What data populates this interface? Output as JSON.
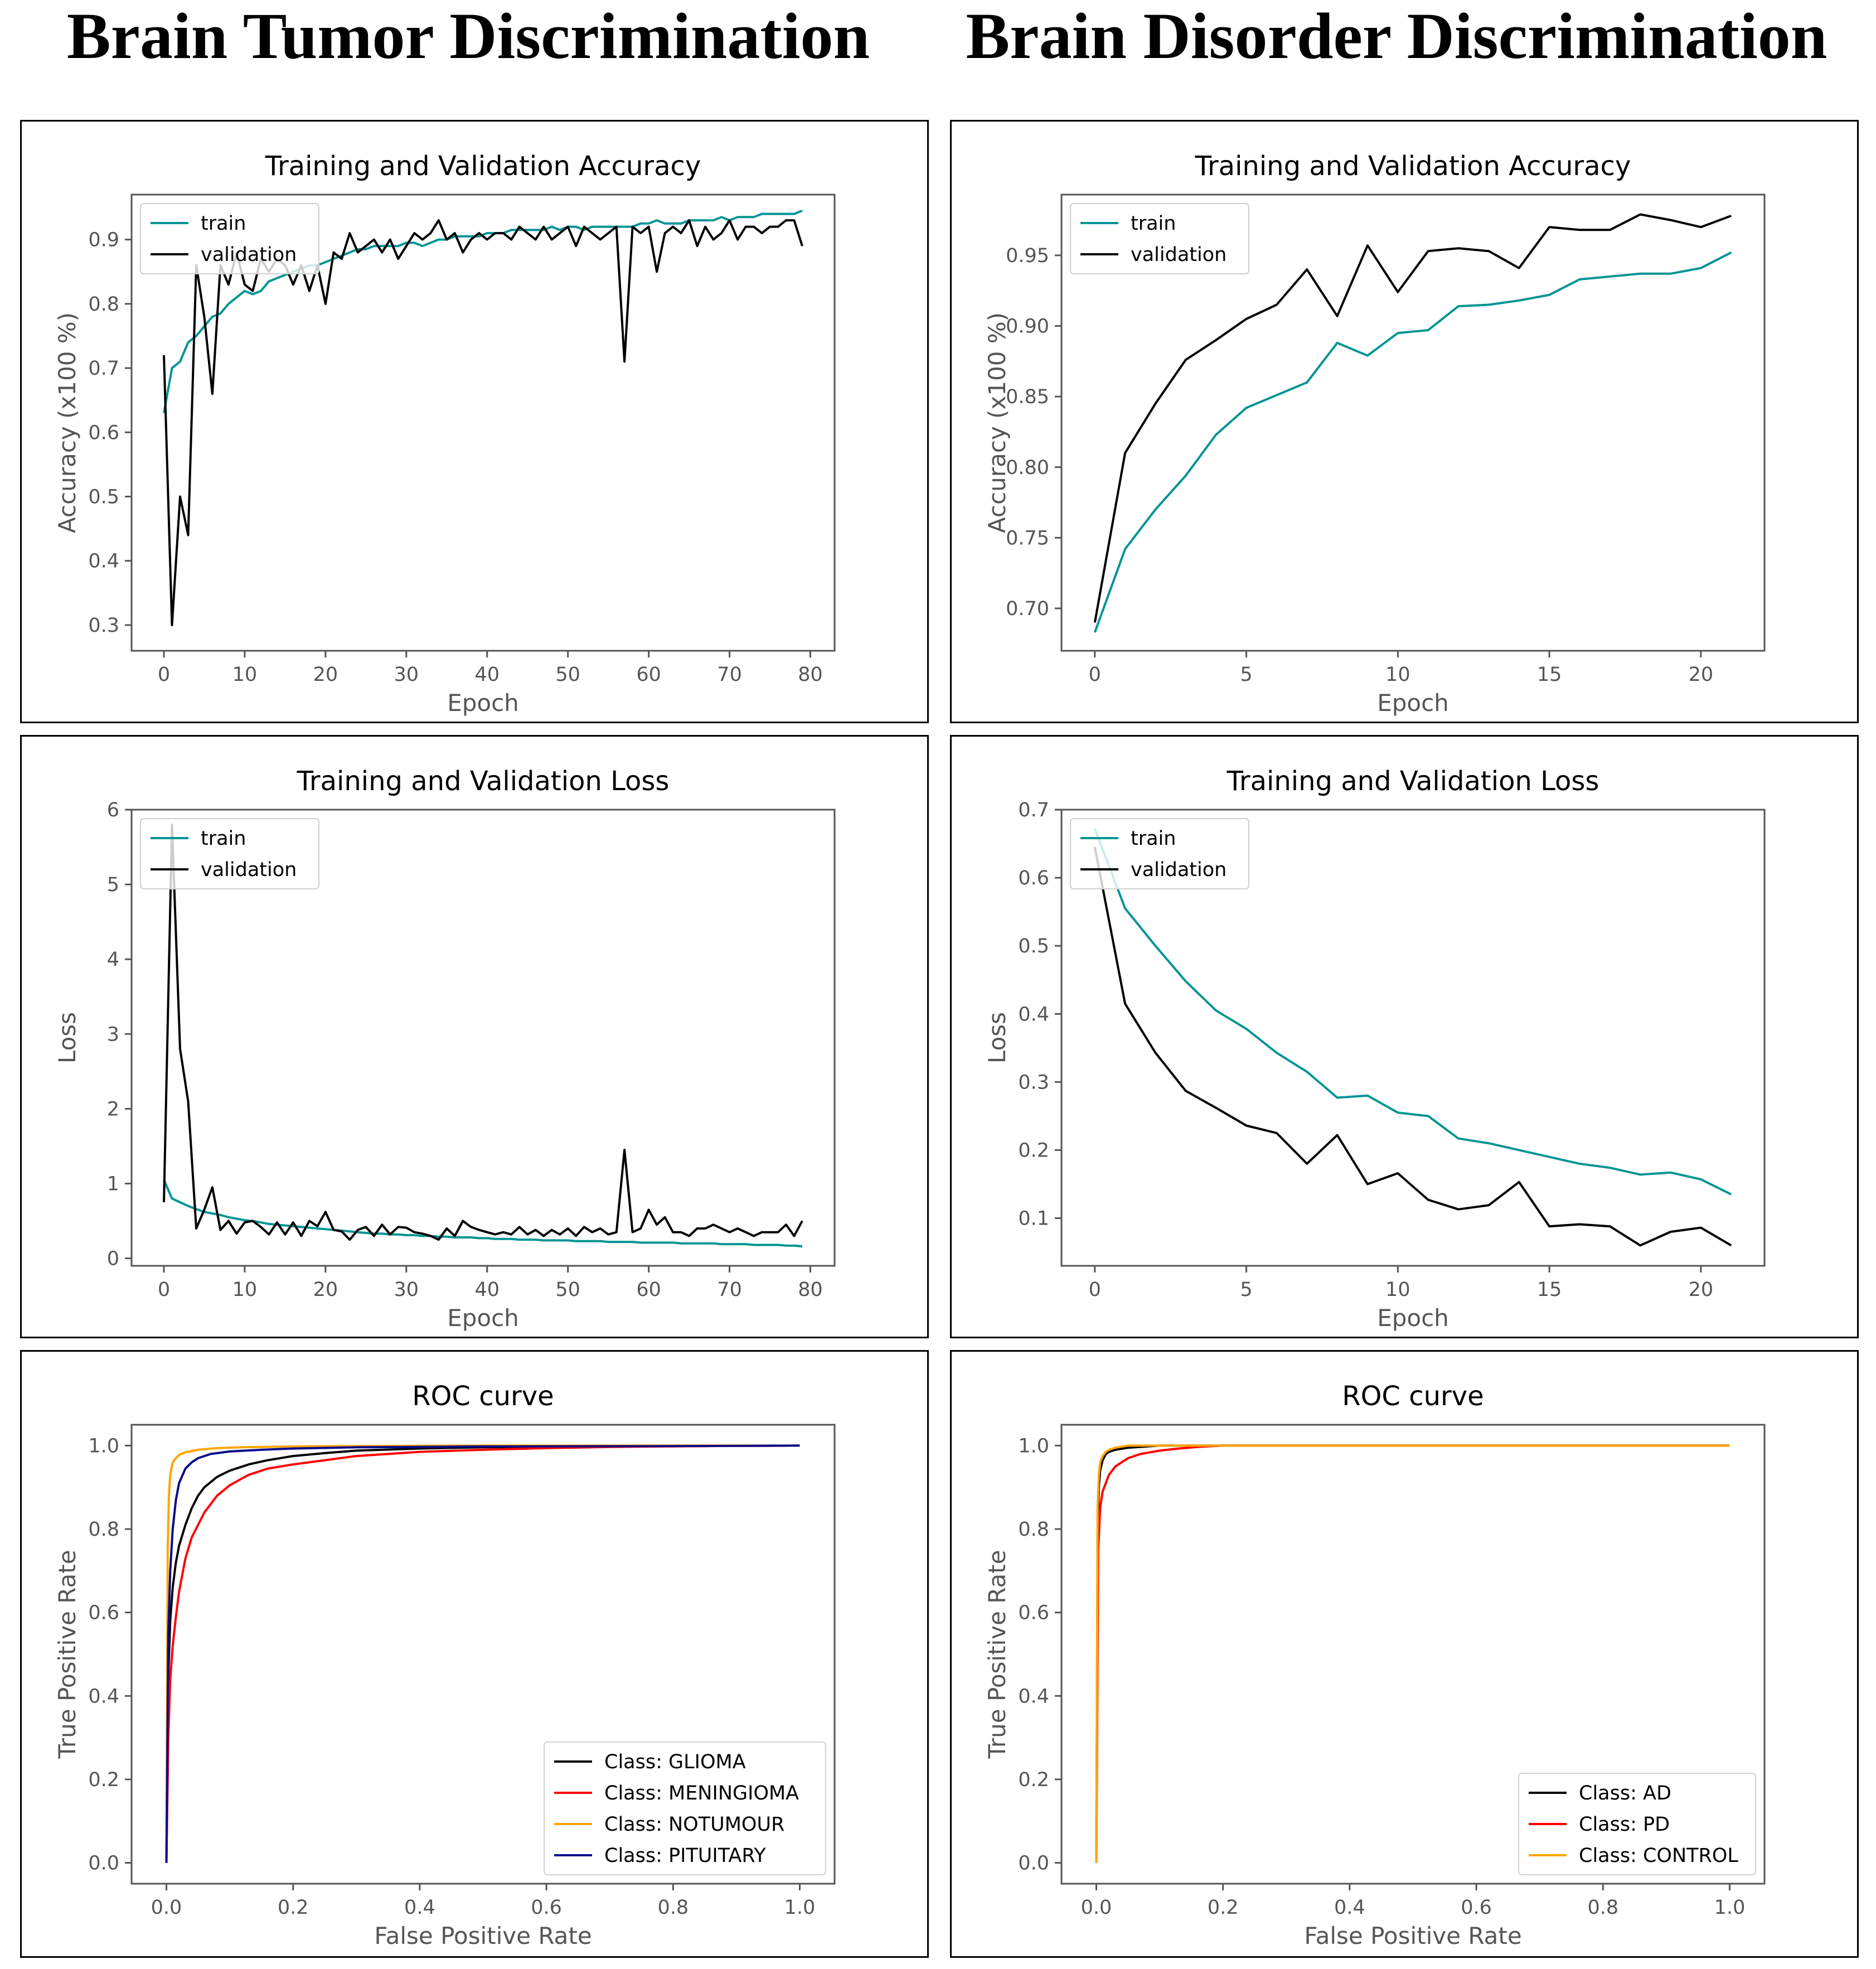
{
  "headings": {
    "left": "Brain Tumor Discrimination",
    "right": "Brain Disorder Discrimination"
  },
  "chart_data": [
    {
      "id": "tumor_acc",
      "type": "line",
      "title": "Training and Validation Accuracy",
      "xlabel": "Epoch",
      "ylabel": "Accuracy (x100 %)",
      "xlim": [
        -4,
        83
      ],
      "ylim": [
        0.26,
        0.97
      ],
      "xticks": [
        0,
        10,
        20,
        30,
        40,
        50,
        60,
        70,
        80
      ],
      "yticks": [
        0.3,
        0.4,
        0.5,
        0.6,
        0.7,
        0.8,
        0.9
      ],
      "xtick_labels": [
        "0",
        "10",
        "20",
        "30",
        "40",
        "50",
        "60",
        "70",
        "80"
      ],
      "ytick_labels": [
        "0.3",
        "0.4",
        "0.5",
        "0.6",
        "0.7",
        "0.8",
        "0.9"
      ],
      "legend": "top-left",
      "series": [
        {
          "name": "train",
          "color": "#009494",
          "values": [
            0.63,
            0.7,
            0.71,
            0.74,
            0.75,
            0.765,
            0.78,
            0.785,
            0.8,
            0.81,
            0.82,
            0.815,
            0.82,
            0.835,
            0.84,
            0.845,
            0.85,
            0.855,
            0.86,
            0.86,
            0.865,
            0.87,
            0.875,
            0.88,
            0.885,
            0.885,
            0.89,
            0.89,
            0.89,
            0.89,
            0.895,
            0.895,
            0.89,
            0.895,
            0.9,
            0.9,
            0.905,
            0.905,
            0.905,
            0.905,
            0.91,
            0.91,
            0.91,
            0.915,
            0.915,
            0.915,
            0.915,
            0.915,
            0.92,
            0.915,
            0.92,
            0.92,
            0.915,
            0.92,
            0.92,
            0.92,
            0.92,
            0.92,
            0.92,
            0.925,
            0.925,
            0.93,
            0.925,
            0.925,
            0.925,
            0.93,
            0.93,
            0.93,
            0.93,
            0.935,
            0.93,
            0.935,
            0.935,
            0.935,
            0.94,
            0.94,
            0.94,
            0.94,
            0.94,
            0.945
          ]
        },
        {
          "name": "validation",
          "color": "#000000",
          "values": [
            0.72,
            0.3,
            0.5,
            0.44,
            0.86,
            0.78,
            0.66,
            0.86,
            0.83,
            0.88,
            0.83,
            0.82,
            0.87,
            0.85,
            0.87,
            0.86,
            0.83,
            0.86,
            0.82,
            0.86,
            0.8,
            0.88,
            0.87,
            0.91,
            0.88,
            0.89,
            0.9,
            0.88,
            0.9,
            0.87,
            0.89,
            0.91,
            0.9,
            0.91,
            0.93,
            0.9,
            0.91,
            0.88,
            0.9,
            0.91,
            0.9,
            0.91,
            0.91,
            0.9,
            0.92,
            0.91,
            0.9,
            0.92,
            0.9,
            0.91,
            0.92,
            0.89,
            0.92,
            0.91,
            0.9,
            0.91,
            0.92,
            0.71,
            0.92,
            0.91,
            0.92,
            0.85,
            0.91,
            0.92,
            0.91,
            0.93,
            0.89,
            0.92,
            0.9,
            0.91,
            0.93,
            0.9,
            0.92,
            0.92,
            0.91,
            0.92,
            0.92,
            0.93,
            0.93,
            0.89
          ]
        }
      ]
    },
    {
      "id": "disorder_acc",
      "type": "line",
      "title": "Training and Validation Accuracy",
      "xlabel": "Epoch",
      "ylabel": "Accuracy (x100 %)",
      "xlim": [
        -1.1,
        22.1
      ],
      "ylim": [
        0.67,
        0.993
      ],
      "xticks": [
        0,
        5,
        10,
        15,
        20
      ],
      "yticks": [
        0.7,
        0.75,
        0.8,
        0.85,
        0.9,
        0.95
      ],
      "xtick_labels": [
        "0",
        "5",
        "10",
        "15",
        "20"
      ],
      "ytick_labels": [
        "0.70",
        "0.75",
        "0.80",
        "0.85",
        "0.90",
        "0.95"
      ],
      "legend": "top-left",
      "series": [
        {
          "name": "train",
          "color": "#009494",
          "values": [
            0.683,
            0.742,
            0.77,
            0.794,
            0.823,
            0.842,
            0.851,
            0.86,
            0.888,
            0.879,
            0.895,
            0.897,
            0.914,
            0.915,
            0.918,
            0.922,
            0.933,
            0.935,
            0.937,
            0.937,
            0.941,
            0.952
          ]
        },
        {
          "name": "validation",
          "color": "#000000",
          "values": [
            0.69,
            0.81,
            0.845,
            0.876,
            0.89,
            0.905,
            0.915,
            0.94,
            0.907,
            0.957,
            0.924,
            0.953,
            0.955,
            0.953,
            0.941,
            0.97,
            0.968,
            0.968,
            0.979,
            0.975,
            0.97,
            0.978
          ]
        }
      ]
    },
    {
      "id": "tumor_loss",
      "type": "line",
      "title": "Training and Validation Loss",
      "xlabel": "Epoch",
      "ylabel": "Loss",
      "xlim": [
        -4,
        83
      ],
      "ylim": [
        -0.1,
        6.0
      ],
      "xticks": [
        0,
        10,
        20,
        30,
        40,
        50,
        60,
        70,
        80
      ],
      "yticks": [
        0,
        1,
        2,
        3,
        4,
        5,
        6
      ],
      "xtick_labels": [
        "0",
        "10",
        "20",
        "30",
        "40",
        "50",
        "60",
        "70",
        "80"
      ],
      "ytick_labels": [
        "0",
        "1",
        "2",
        "3",
        "4",
        "5",
        "6"
      ],
      "legend": "top-left",
      "series": [
        {
          "name": "train",
          "color": "#009494",
          "values": [
            1.05,
            0.8,
            0.75,
            0.7,
            0.66,
            0.62,
            0.6,
            0.58,
            0.55,
            0.53,
            0.51,
            0.5,
            0.48,
            0.46,
            0.45,
            0.44,
            0.43,
            0.42,
            0.41,
            0.4,
            0.39,
            0.38,
            0.37,
            0.36,
            0.35,
            0.34,
            0.33,
            0.33,
            0.32,
            0.32,
            0.31,
            0.31,
            0.3,
            0.3,
            0.29,
            0.29,
            0.28,
            0.28,
            0.28,
            0.27,
            0.27,
            0.26,
            0.26,
            0.26,
            0.25,
            0.25,
            0.25,
            0.24,
            0.24,
            0.24,
            0.24,
            0.23,
            0.23,
            0.23,
            0.23,
            0.22,
            0.22,
            0.22,
            0.22,
            0.21,
            0.21,
            0.21,
            0.21,
            0.21,
            0.2,
            0.2,
            0.2,
            0.2,
            0.2,
            0.19,
            0.19,
            0.19,
            0.19,
            0.18,
            0.18,
            0.18,
            0.18,
            0.17,
            0.17,
            0.16
          ]
        },
        {
          "name": "validation",
          "color": "#000000",
          "values": [
            0.75,
            5.8,
            2.8,
            2.1,
            0.4,
            0.65,
            0.95,
            0.38,
            0.5,
            0.33,
            0.48,
            0.5,
            0.42,
            0.32,
            0.48,
            0.32,
            0.48,
            0.3,
            0.5,
            0.43,
            0.62,
            0.38,
            0.36,
            0.25,
            0.38,
            0.42,
            0.3,
            0.45,
            0.32,
            0.42,
            0.41,
            0.35,
            0.33,
            0.3,
            0.25,
            0.4,
            0.3,
            0.5,
            0.42,
            0.38,
            0.35,
            0.32,
            0.35,
            0.32,
            0.42,
            0.32,
            0.38,
            0.3,
            0.38,
            0.32,
            0.4,
            0.3,
            0.42,
            0.35,
            0.4,
            0.32,
            0.35,
            1.45,
            0.35,
            0.4,
            0.65,
            0.45,
            0.55,
            0.35,
            0.35,
            0.3,
            0.4,
            0.4,
            0.45,
            0.4,
            0.35,
            0.4,
            0.35,
            0.3,
            0.35,
            0.35,
            0.35,
            0.45,
            0.3,
            0.5
          ]
        }
      ]
    },
    {
      "id": "disorder_loss",
      "type": "line",
      "title": "Training and Validation Loss",
      "xlabel": "Epoch",
      "ylabel": "Loss",
      "xlim": [
        -1.1,
        22.1
      ],
      "ylim": [
        0.03,
        0.7
      ],
      "xticks": [
        0,
        5,
        10,
        15,
        20
      ],
      "yticks": [
        0.1,
        0.2,
        0.3,
        0.4,
        0.5,
        0.6,
        0.7
      ],
      "xtick_labels": [
        "0",
        "5",
        "10",
        "15",
        "20"
      ],
      "ytick_labels": [
        "0.1",
        "0.2",
        "0.3",
        "0.4",
        "0.5",
        "0.6",
        "0.7"
      ],
      "legend": "top-left",
      "series": [
        {
          "name": "train",
          "color": "#009494",
          "values": [
            0.672,
            0.555,
            0.5,
            0.448,
            0.405,
            0.378,
            0.343,
            0.315,
            0.277,
            0.28,
            0.255,
            0.25,
            0.217,
            0.21,
            0.2,
            0.19,
            0.18,
            0.174,
            0.164,
            0.167,
            0.157,
            0.135
          ]
        },
        {
          "name": "validation",
          "color": "#000000",
          "values": [
            0.645,
            0.415,
            0.343,
            0.287,
            0.262,
            0.236,
            0.225,
            0.18,
            0.222,
            0.15,
            0.166,
            0.127,
            0.113,
            0.119,
            0.153,
            0.088,
            0.091,
            0.088,
            0.06,
            0.08,
            0.086,
            0.06
          ]
        }
      ]
    },
    {
      "id": "tumor_roc",
      "type": "line",
      "title": "ROC curve",
      "xlabel": "False Positive Rate",
      "ylabel": "True Positive Rate",
      "xlim": [
        -0.055,
        1.055
      ],
      "ylim": [
        -0.05,
        1.05
      ],
      "xticks": [
        0,
        0.2,
        0.4,
        0.6,
        0.8,
        1.0
      ],
      "yticks": [
        0,
        0.2,
        0.4,
        0.6,
        0.8,
        1.0
      ],
      "xtick_labels": [
        "0.0",
        "0.2",
        "0.4",
        "0.6",
        "0.8",
        "1.0"
      ],
      "ytick_labels": [
        "0.0",
        "0.2",
        "0.4",
        "0.6",
        "0.8",
        "1.0"
      ],
      "legend": "bottom-right",
      "series": [
        {
          "name": "Class: GLIOMA",
          "color": "#000000",
          "x": [
            0,
            0.003,
            0.006,
            0.01,
            0.015,
            0.02,
            0.03,
            0.04,
            0.05,
            0.06,
            0.08,
            0.1,
            0.13,
            0.16,
            0.2,
            0.25,
            0.3,
            0.4,
            0.5,
            0.7,
            1.0
          ],
          "y": [
            0,
            0.45,
            0.58,
            0.66,
            0.72,
            0.76,
            0.81,
            0.85,
            0.88,
            0.9,
            0.925,
            0.94,
            0.955,
            0.965,
            0.975,
            0.982,
            0.988,
            0.993,
            0.996,
            0.998,
            1.0
          ]
        },
        {
          "name": "Class: MENINGIOMA",
          "color": "#ff0000",
          "x": [
            0,
            0.003,
            0.006,
            0.01,
            0.015,
            0.02,
            0.03,
            0.04,
            0.05,
            0.06,
            0.08,
            0.1,
            0.13,
            0.16,
            0.2,
            0.25,
            0.3,
            0.4,
            0.5,
            0.6,
            0.7,
            0.85,
            1.0
          ],
          "y": [
            0,
            0.3,
            0.44,
            0.52,
            0.59,
            0.65,
            0.73,
            0.78,
            0.81,
            0.84,
            0.88,
            0.905,
            0.93,
            0.945,
            0.955,
            0.965,
            0.975,
            0.985,
            0.99,
            0.994,
            0.997,
            0.999,
            1.0
          ]
        },
        {
          "name": "Class: NOTUMOUR",
          "color": "#ffa500",
          "x": [
            0,
            0.002,
            0.004,
            0.006,
            0.01,
            0.015,
            0.02,
            0.03,
            0.05,
            0.08,
            0.12,
            0.2,
            0.3,
            0.5,
            1.0
          ],
          "y": [
            0,
            0.75,
            0.88,
            0.93,
            0.96,
            0.97,
            0.978,
            0.984,
            0.99,
            0.994,
            0.996,
            0.998,
            0.999,
            1.0,
            1.0
          ]
        },
        {
          "name": "Class: PITUITARY",
          "color": "#0a0a8c",
          "x": [
            0,
            0.003,
            0.006,
            0.01,
            0.015,
            0.02,
            0.03,
            0.04,
            0.05,
            0.07,
            0.1,
            0.15,
            0.2,
            0.3,
            0.5,
            0.8,
            1.0
          ],
          "y": [
            0,
            0.55,
            0.7,
            0.8,
            0.87,
            0.91,
            0.945,
            0.96,
            0.97,
            0.98,
            0.986,
            0.99,
            0.993,
            0.996,
            0.998,
            0.999,
            1.0
          ]
        }
      ]
    },
    {
      "id": "disorder_roc",
      "type": "line",
      "title": "ROC curve",
      "xlabel": "False Positive Rate",
      "ylabel": "True Positive Rate",
      "xlim": [
        -0.055,
        1.055
      ],
      "ylim": [
        -0.05,
        1.05
      ],
      "xticks": [
        0,
        0.2,
        0.4,
        0.6,
        0.8,
        1.0
      ],
      "yticks": [
        0,
        0.2,
        0.4,
        0.6,
        0.8,
        1.0
      ],
      "xtick_labels": [
        "0.0",
        "0.2",
        "0.4",
        "0.6",
        "0.8",
        "1.0"
      ],
      "ytick_labels": [
        "0.0",
        "0.2",
        "0.4",
        "0.6",
        "0.8",
        "1.0"
      ],
      "legend": "bottom-right",
      "series": [
        {
          "name": "Class: AD",
          "color": "#000000",
          "x": [
            0,
            0.002,
            0.004,
            0.006,
            0.01,
            0.015,
            0.02,
            0.03,
            0.05,
            0.1,
            1.0
          ],
          "y": [
            0,
            0.78,
            0.9,
            0.94,
            0.965,
            0.98,
            0.985,
            0.99,
            0.995,
            1.0,
            1.0
          ]
        },
        {
          "name": "Class: PD",
          "color": "#ff0000",
          "x": [
            0,
            0.003,
            0.006,
            0.01,
            0.015,
            0.02,
            0.03,
            0.05,
            0.07,
            0.1,
            0.13,
            0.16,
            0.2,
            1.0
          ],
          "y": [
            0,
            0.75,
            0.85,
            0.89,
            0.91,
            0.93,
            0.95,
            0.97,
            0.98,
            0.988,
            0.993,
            0.997,
            1.0,
            1.0
          ]
        },
        {
          "name": "Class: CONTROL",
          "color": "#ffa500",
          "x": [
            0,
            0.002,
            0.004,
            0.006,
            0.01,
            0.015,
            0.02,
            0.03,
            0.05,
            1.0
          ],
          "y": [
            0,
            0.85,
            0.93,
            0.96,
            0.975,
            0.985,
            0.99,
            0.995,
            1.0,
            1.0
          ]
        }
      ]
    }
  ]
}
